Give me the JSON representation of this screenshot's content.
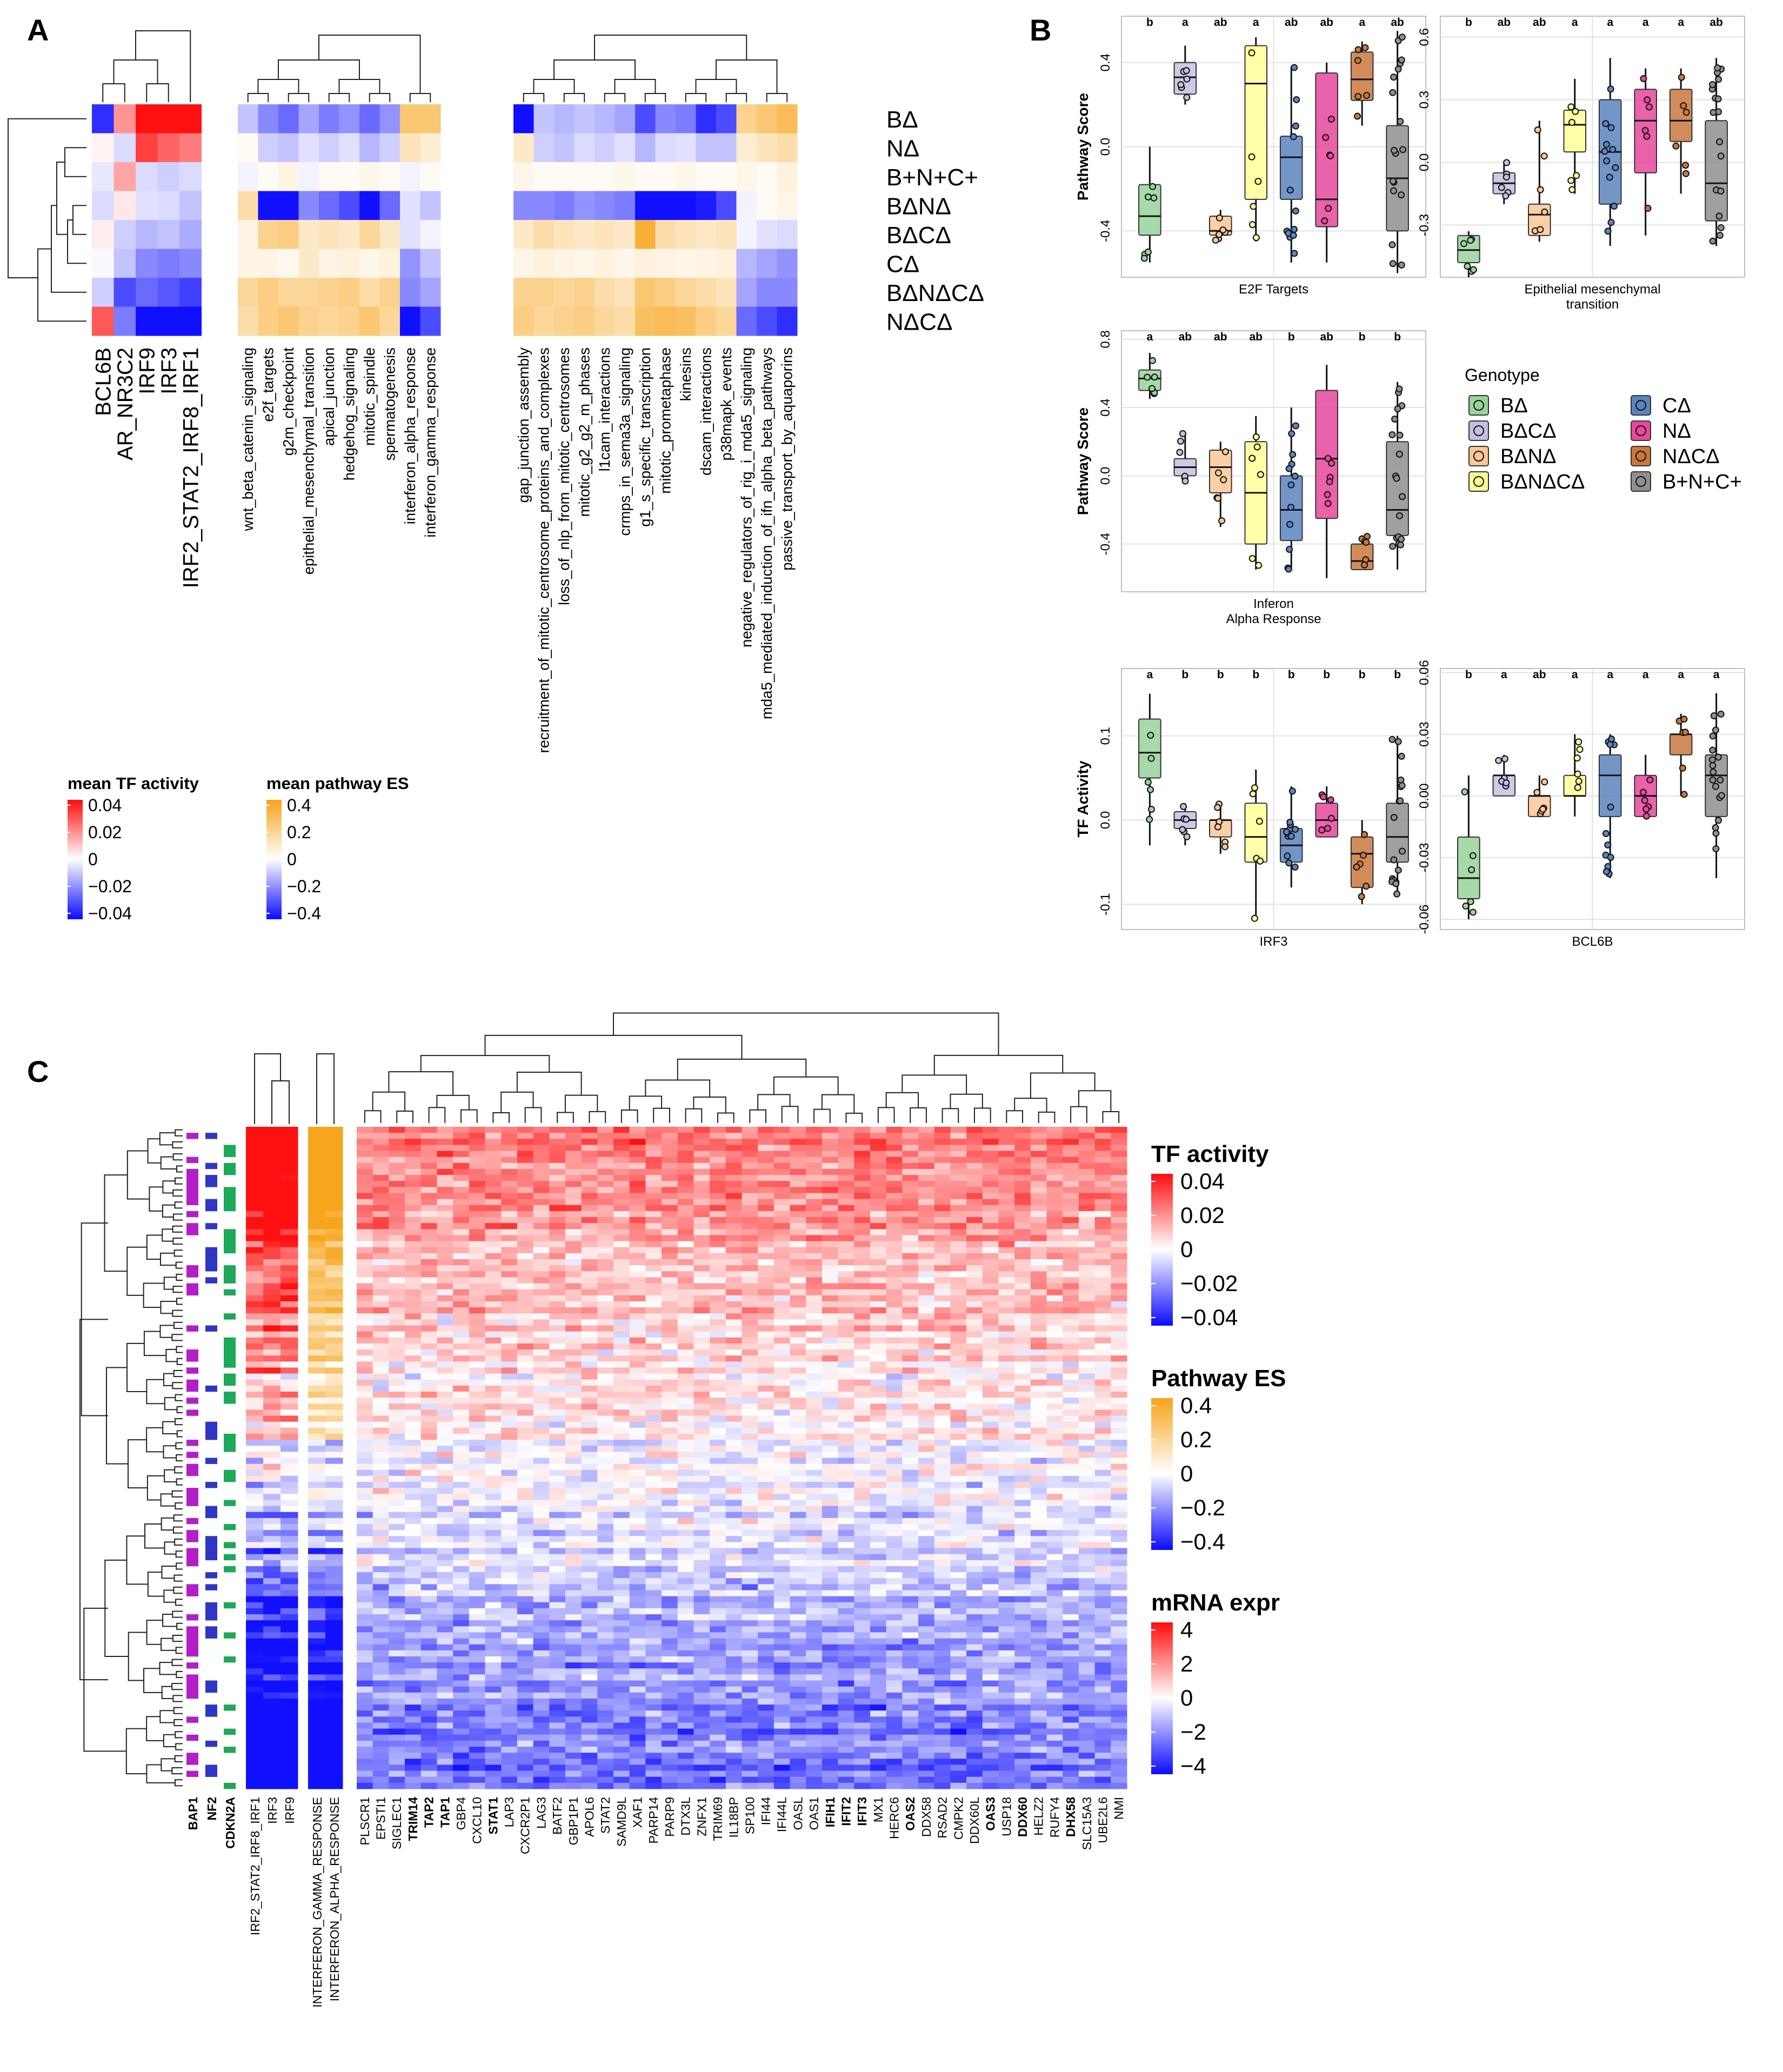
{
  "panel_labels": {
    "a": "A",
    "b": "B",
    "c": "C"
  },
  "colors": {
    "neg": "#1010ff",
    "pos_tf": "#ff1010",
    "pos_path": "#f7a51d",
    "white": "#ffffff",
    "mut_bap1": "#b31fc6",
    "mut_nf2": "#3036c4",
    "mut_cdkn2a": "#1ea85a",
    "highlight_gene": "#e00000"
  },
  "panel_a": {
    "genotype_rows": [
      "BΔ",
      "NΔ",
      "B+N+C+",
      "BΔNΔ",
      "BΔCΔ",
      "CΔ",
      "BΔNΔCΔ",
      "NΔCΔ"
    ],
    "tf_columns": [
      "BCL6B",
      "AR_NR3C2",
      "IRF9",
      "IRF3",
      "IRF2_STAT2_IRF8_IRF1"
    ],
    "tf_values": [
      [
        -0.035,
        0.018,
        0.045,
        0.045,
        0.045
      ],
      [
        0.002,
        -0.006,
        0.032,
        0.026,
        0.022
      ],
      [
        -0.004,
        0.015,
        -0.006,
        -0.008,
        -0.006
      ],
      [
        -0.006,
        0.004,
        -0.005,
        -0.006,
        -0.01
      ],
      [
        0.003,
        -0.008,
        -0.012,
        -0.01,
        -0.014
      ],
      [
        -0.001,
        -0.01,
        -0.02,
        -0.022,
        -0.02
      ],
      [
        -0.008,
        -0.03,
        -0.025,
        -0.028,
        -0.032
      ],
      [
        0.028,
        -0.022,
        -0.045,
        -0.045,
        -0.045
      ]
    ],
    "pathway_block1": [
      "wnt_beta_catenin_signaling",
      "e2f_targets",
      "g2m_checkpoint",
      "epithelial_mesenchymal_transition",
      "apical_junction",
      "hedgehog_signaling",
      "mitotic_spindle",
      "spermatogenesis",
      "interferon_alpha_response",
      "interferon_gamma_response"
    ],
    "pathway_block1_values": [
      [
        -0.1,
        -0.2,
        -0.25,
        -0.15,
        -0.22,
        -0.18,
        -0.25,
        -0.18,
        0.25,
        0.25
      ],
      [
        0.02,
        -0.08,
        -0.1,
        -0.05,
        -0.08,
        -0.05,
        -0.12,
        -0.08,
        0.12,
        0.08
      ],
      [
        -0.02,
        0.02,
        0.05,
        -0.02,
        0.02,
        0.02,
        0.04,
        0.02,
        -0.02,
        0.02
      ],
      [
        0.15,
        -0.4,
        -0.4,
        -0.2,
        -0.25,
        -0.3,
        -0.4,
        -0.25,
        -0.05,
        -0.1
      ],
      [
        0.05,
        0.2,
        0.22,
        0.1,
        0.12,
        0.1,
        0.18,
        0.1,
        -0.05,
        -0.02
      ],
      [
        0.05,
        0.05,
        0.03,
        0.1,
        0.05,
        0.06,
        0.04,
        0.06,
        -0.18,
        -0.1
      ],
      [
        0.18,
        0.22,
        0.18,
        0.18,
        0.2,
        0.22,
        0.15,
        0.2,
        -0.2,
        -0.15
      ],
      [
        0.15,
        0.22,
        0.25,
        0.2,
        0.18,
        0.2,
        0.25,
        0.18,
        -0.4,
        -0.3
      ]
    ],
    "pathway_block2": [
      "gap_junction_assembly",
      "recruitment_of_mitotic_centrosome_proteins_and_complexes",
      "loss_of_nlp_from_mitotic_centrosomes",
      "mitotic_g2_g2_m_phases",
      "l1cam_interactions",
      "crmps_in_sema3a_signaling",
      "g1_s_specific_transcription",
      "mitotic_prometaphase",
      "kinesins",
      "dscam_interactions",
      "p38mapk_events",
      "negative_regulators_of_rig_i_mda5_signaling",
      "mda5_mediated_induction_of_ifn_alpha_beta_pathways",
      "passive_transport_by_aquaporins"
    ],
    "pathway_block2_values": [
      [
        -0.4,
        -0.1,
        -0.12,
        -0.1,
        -0.12,
        -0.15,
        -0.3,
        -0.2,
        -0.22,
        -0.35,
        -0.3,
        0.2,
        0.25,
        0.3
      ],
      [
        0.1,
        -0.08,
        -0.1,
        -0.06,
        -0.08,
        -0.05,
        -0.12,
        -0.06,
        -0.05,
        -0.1,
        -0.1,
        0.08,
        0.12,
        0.15
      ],
      [
        0.04,
        0.02,
        0.02,
        0.02,
        0.02,
        0.04,
        0.02,
        0.02,
        0.04,
        0.02,
        0.02,
        0.04,
        0.02,
        0.06
      ],
      [
        -0.2,
        -0.2,
        -0.22,
        -0.18,
        -0.2,
        -0.22,
        -0.4,
        -0.4,
        -0.4,
        -0.38,
        -0.3,
        -0.02,
        0.02,
        0.04
      ],
      [
        0.1,
        0.15,
        0.12,
        0.1,
        0.12,
        0.1,
        0.35,
        0.15,
        0.12,
        0.1,
        0.12,
        -0.02,
        -0.05,
        -0.06
      ],
      [
        0.04,
        0.06,
        0.05,
        0.04,
        0.06,
        0.04,
        0.06,
        0.05,
        0.04,
        0.05,
        0.06,
        -0.12,
        -0.15,
        -0.18
      ],
      [
        0.2,
        0.2,
        0.18,
        0.2,
        0.15,
        0.12,
        0.25,
        0.22,
        0.18,
        0.15,
        0.12,
        -0.15,
        -0.2,
        -0.2
      ],
      [
        0.22,
        0.18,
        0.2,
        0.22,
        0.18,
        0.15,
        0.28,
        0.3,
        0.28,
        0.22,
        0.18,
        -0.25,
        -0.3,
        -0.35
      ]
    ],
    "legend_tf": {
      "title": "mean TF activity",
      "ticks": [
        "0.04",
        "0.02",
        "0",
        "−0.02",
        "−0.04"
      ]
    },
    "legend_path": {
      "title": "mean pathway ES",
      "ticks": [
        "0.4",
        "0.2",
        "0",
        "−0.2",
        "−0.4"
      ]
    }
  },
  "panel_b": {
    "legend_title": "Genotype",
    "legend_items": [
      {
        "label": "BΔ",
        "color": "#98d49a"
      },
      {
        "label": "CΔ",
        "color": "#5b84bf"
      },
      {
        "label": "BΔCΔ",
        "color": "#c7bfe0"
      },
      {
        "label": "NΔ",
        "color": "#e6489b"
      },
      {
        "label": "BΔNΔ",
        "color": "#fbc797"
      },
      {
        "label": "NΔCΔ",
        "color": "#c9783d"
      },
      {
        "label": "BΔNΔCΔ",
        "color": "#ffff99"
      },
      {
        "label": "B+N+C+",
        "color": "#8f8f8f"
      }
    ],
    "genotype_order": [
      "BΔ",
      "BΔCΔ",
      "BΔNΔ",
      "BΔNΔCΔ",
      "CΔ",
      "NΔ",
      "NΔCΔ",
      "B+N+C+"
    ],
    "plots": [
      {
        "id": "e2f",
        "ylabel": "Pathway Score",
        "xlabel1": "E2F Targets",
        "xlabel2": "",
        "ylim": [
          -0.62,
          0.62
        ],
        "ticks": [
          -0.4,
          0.0,
          0.4
        ],
        "tick_labels": [
          "-0.4",
          "0.0",
          "0.4"
        ],
        "letters": [
          "b",
          "a",
          "ab",
          "a",
          "ab",
          "ab",
          "a",
          "ab"
        ],
        "boxes": [
          [
            -0.55,
            -0.42,
            -0.33,
            -0.18,
            0.0
          ],
          [
            0.2,
            0.25,
            0.33,
            0.4,
            0.48
          ],
          [
            -0.45,
            -0.42,
            -0.4,
            -0.33,
            -0.3
          ],
          [
            -0.45,
            -0.25,
            0.3,
            0.48,
            0.52
          ],
          [
            -0.55,
            -0.25,
            -0.05,
            0.05,
            0.38
          ],
          [
            -0.55,
            -0.38,
            -0.25,
            0.35,
            0.4
          ],
          [
            0.1,
            0.22,
            0.32,
            0.45,
            0.5
          ],
          [
            -0.6,
            -0.4,
            -0.15,
            0.1,
            0.55
          ]
        ]
      },
      {
        "id": "emt",
        "ylabel": "",
        "xlabel1": "Epithelial mesenchymal",
        "xlabel2": "transition",
        "ylim": [
          -0.55,
          0.7
        ],
        "ticks": [
          -0.3,
          0.0,
          0.3,
          0.6
        ],
        "tick_labels": [
          "-0.3",
          "0.0",
          "0.3",
          "0.6"
        ],
        "letters": [
          "b",
          "ab",
          "ab",
          "a",
          "a",
          "a",
          "a",
          "ab"
        ],
        "boxes": [
          [
            -0.55,
            -0.48,
            -0.42,
            -0.35,
            -0.33
          ],
          [
            -0.2,
            -0.15,
            -0.1,
            -0.05,
            0.0
          ],
          [
            -0.38,
            -0.35,
            -0.25,
            -0.2,
            0.2
          ],
          [
            -0.15,
            0.05,
            0.18,
            0.25,
            0.4
          ],
          [
            -0.4,
            -0.2,
            0.05,
            0.3,
            0.5
          ],
          [
            -0.35,
            -0.05,
            0.2,
            0.35,
            0.45
          ],
          [
            -0.15,
            0.1,
            0.2,
            0.35,
            0.45
          ],
          [
            -0.4,
            -0.28,
            -0.1,
            0.2,
            0.5
          ]
        ]
      },
      {
        "id": "ifna",
        "ylabel": "Pathway Score",
        "xlabel1": "Inferon",
        "xlabel2": "Alpha Response",
        "ylim": [
          -0.68,
          0.85
        ],
        "ticks": [
          -0.4,
          0.0,
          0.4,
          0.8
        ],
        "tick_labels": [
          "-0.4",
          "0.0",
          "0.4",
          "0.8"
        ],
        "letters": [
          "a",
          "ab",
          "ab",
          "ab",
          "b",
          "ab",
          "b",
          "b"
        ],
        "boxes": [
          [
            0.45,
            0.5,
            0.57,
            0.62,
            0.72
          ],
          [
            -0.05,
            0.0,
            0.05,
            0.1,
            0.25
          ],
          [
            -0.3,
            -0.1,
            0.05,
            0.15,
            0.2
          ],
          [
            -0.55,
            -0.4,
            -0.1,
            0.2,
            0.35
          ],
          [
            -0.55,
            -0.38,
            -0.2,
            0.0,
            0.4
          ],
          [
            -0.6,
            -0.25,
            0.1,
            0.5,
            0.65
          ],
          [
            -0.55,
            -0.55,
            -0.5,
            -0.4,
            -0.35
          ],
          [
            -0.55,
            -0.35,
            -0.2,
            0.2,
            0.55
          ]
        ]
      },
      {
        "id": "irf3",
        "ylabel": "TF Activity",
        "xlabel1": "IRF3",
        "xlabel2": "",
        "ylim": [
          -0.13,
          0.18
        ],
        "ticks": [
          -0.1,
          0.0,
          0.1
        ],
        "tick_labels": [
          "-0.1",
          "0.0",
          "0.1"
        ],
        "letters": [
          "a",
          "b",
          "b",
          "b",
          "b",
          "b",
          "b",
          "b"
        ],
        "boxes": [
          [
            -0.03,
            0.05,
            0.08,
            0.12,
            0.15
          ],
          [
            -0.03,
            -0.01,
            0.0,
            0.01,
            0.02
          ],
          [
            -0.04,
            -0.02,
            0.0,
            0.0,
            0.02
          ],
          [
            -0.12,
            -0.05,
            -0.02,
            0.02,
            0.06
          ],
          [
            -0.08,
            -0.05,
            -0.03,
            -0.01,
            0.04
          ],
          [
            -0.02,
            -0.02,
            0.0,
            0.02,
            0.04
          ],
          [
            -0.1,
            -0.08,
            -0.04,
            -0.02,
            0.0
          ],
          [
            -0.09,
            -0.05,
            -0.02,
            0.02,
            0.1
          ]
        ]
      },
      {
        "id": "bcl6b",
        "ylabel": "",
        "xlabel1": "BCL6B",
        "xlabel2": "",
        "ylim": [
          -0.065,
          0.062
        ],
        "ticks": [
          -0.06,
          -0.03,
          0.0,
          0.03,
          0.06
        ],
        "tick_labels": [
          "-0.06",
          "-0.03",
          "0.00",
          "0.03",
          "0.06"
        ],
        "letters": [
          "b",
          "a",
          "ab",
          "a",
          "a",
          "a",
          "a",
          "a"
        ],
        "boxes": [
          [
            -0.06,
            -0.05,
            -0.04,
            -0.02,
            0.01
          ],
          [
            0.0,
            0.0,
            0.01,
            0.01,
            0.02
          ],
          [
            -0.01,
            -0.01,
            -0.0,
            0.0,
            0.01
          ],
          [
            -0.01,
            -0.0,
            0.0,
            0.01,
            0.03
          ],
          [
            -0.04,
            -0.01,
            0.01,
            0.02,
            0.03
          ],
          [
            -0.01,
            -0.01,
            0.0,
            0.01,
            0.02
          ],
          [
            0.0,
            0.02,
            0.03,
            0.03,
            0.04
          ],
          [
            -0.04,
            -0.01,
            0.01,
            0.02,
            0.05
          ]
        ]
      }
    ]
  },
  "panel_c": {
    "n_samples": 110,
    "mutation_labels": [
      "BAP1",
      "NF2",
      "CDKN2A"
    ],
    "tf_labels": [
      "IRF2_STAT2_IRF8_IRF1",
      "IRF3",
      "IRF9"
    ],
    "pathway_labels": [
      "INTERFERON_GAMMA_RESPONSE",
      "INTERFERON_ALPHA_RESPONSE"
    ],
    "genes": [
      "PLSCR1",
      "EPSTI1",
      "SIGLEC1",
      "TRIM14",
      "TAP2",
      "TAP1",
      "GBP4",
      "CXCL10",
      "STAT1",
      "LAP3",
      "CXCR2P1",
      "LAG3",
      "BATF2",
      "GBP1P1",
      "APOL6",
      "STAT2",
      "SAMD9L",
      "XAF1",
      "PARP14",
      "PARP9",
      "DTX3L",
      "ZNFX1",
      "TRIM69",
      "IL18BP",
      "SP100",
      "IFI44",
      "IFI44L",
      "OASL",
      "OAS1",
      "IFIH1",
      "IFIT2",
      "IFIT3",
      "MX1",
      "HERC6",
      "OAS2",
      "DDX58",
      "RSAD2",
      "CMPK2",
      "DDX60L",
      "OAS3",
      "USP18",
      "DDX60",
      "HELZ2",
      "RUFY4",
      "DHX58",
      "SLC15A3",
      "UBE2L6",
      "NMI"
    ],
    "highlight_genes": [
      "TRIM14",
      "TAP2",
      "TAP1",
      "STAT1",
      "IFIH1",
      "IFIT2",
      "IFIT3",
      "OAS2",
      "OAS3",
      "DDX60",
      "DHX58"
    ],
    "legend_tf": {
      "title": "TF activity",
      "ticks": [
        "0.04",
        "0.02",
        "0",
        "−0.02",
        "−0.04"
      ]
    },
    "legend_path": {
      "title": "Pathway ES",
      "ticks": [
        "0.4",
        "0.2",
        "0",
        "−0.2",
        "−0.4"
      ]
    },
    "legend_mrna": {
      "title": "mRNA expr",
      "ticks": [
        "4",
        "2",
        "0",
        "−2",
        "−4"
      ]
    }
  }
}
